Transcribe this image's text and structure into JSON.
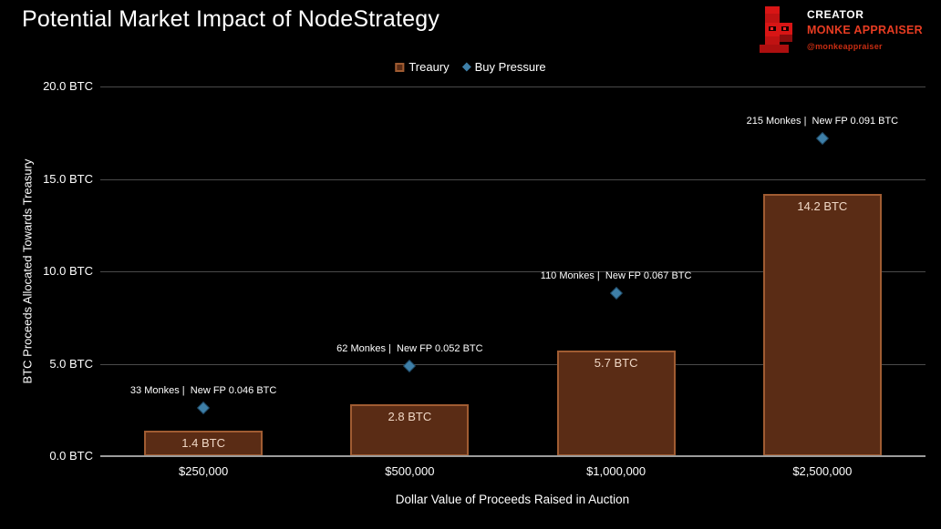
{
  "header": {
    "title": "Potential Market Impact of NodeStrategy",
    "creator": {
      "label": "CREATOR",
      "name": "MONKE APPRAISER",
      "handle": "@monkeappraiser"
    }
  },
  "chart_data": {
    "type": "bar",
    "title": "Potential Market Impact of NodeStrategy",
    "categories": [
      "$250,000",
      "$500,000",
      "$1,000,000",
      "$2,500,000"
    ],
    "series": [
      {
        "name": "Treaury",
        "type": "bar",
        "values": [
          1.4,
          2.8,
          5.7,
          14.2
        ],
        "labels": [
          "1.4 BTC",
          "2.8 BTC",
          "5.7 BTC",
          "14.2 BTC"
        ],
        "fill": "#5a2c15",
        "border": "#a05c32",
        "label_color": "#f0d8c6"
      },
      {
        "name": "Buy Pressure",
        "type": "scatter",
        "values": [
          2.6,
          4.9,
          8.8,
          17.2
        ],
        "annotations": [
          "33 Monkes |  New FP 0.046 BTC",
          "62 Monkes |  New FP 0.052 BTC",
          "110 Monkes |  New FP 0.067 BTC",
          "215 Monkes |  New FP 0.091 BTC"
        ],
        "marker_color": "#3e7fa8"
      }
    ],
    "xlabel": "Dollar Value of Proceeds Raised in Auction",
    "ylabel": "BTC Proceeds Allocated Towards Treasury",
    "ylim": [
      0,
      20
    ],
    "ytick_step": 5,
    "yticks": [
      "0.0 BTC",
      "5.0 BTC",
      "10.0 BTC",
      "15.0 BTC",
      "20.0 BTC"
    ],
    "grid": true,
    "gridline_color": "#4a4a4a",
    "axisline_color": "#9c9c9c",
    "legend_position": "top-center",
    "background": "#000000",
    "text_color": "#ffffff"
  }
}
